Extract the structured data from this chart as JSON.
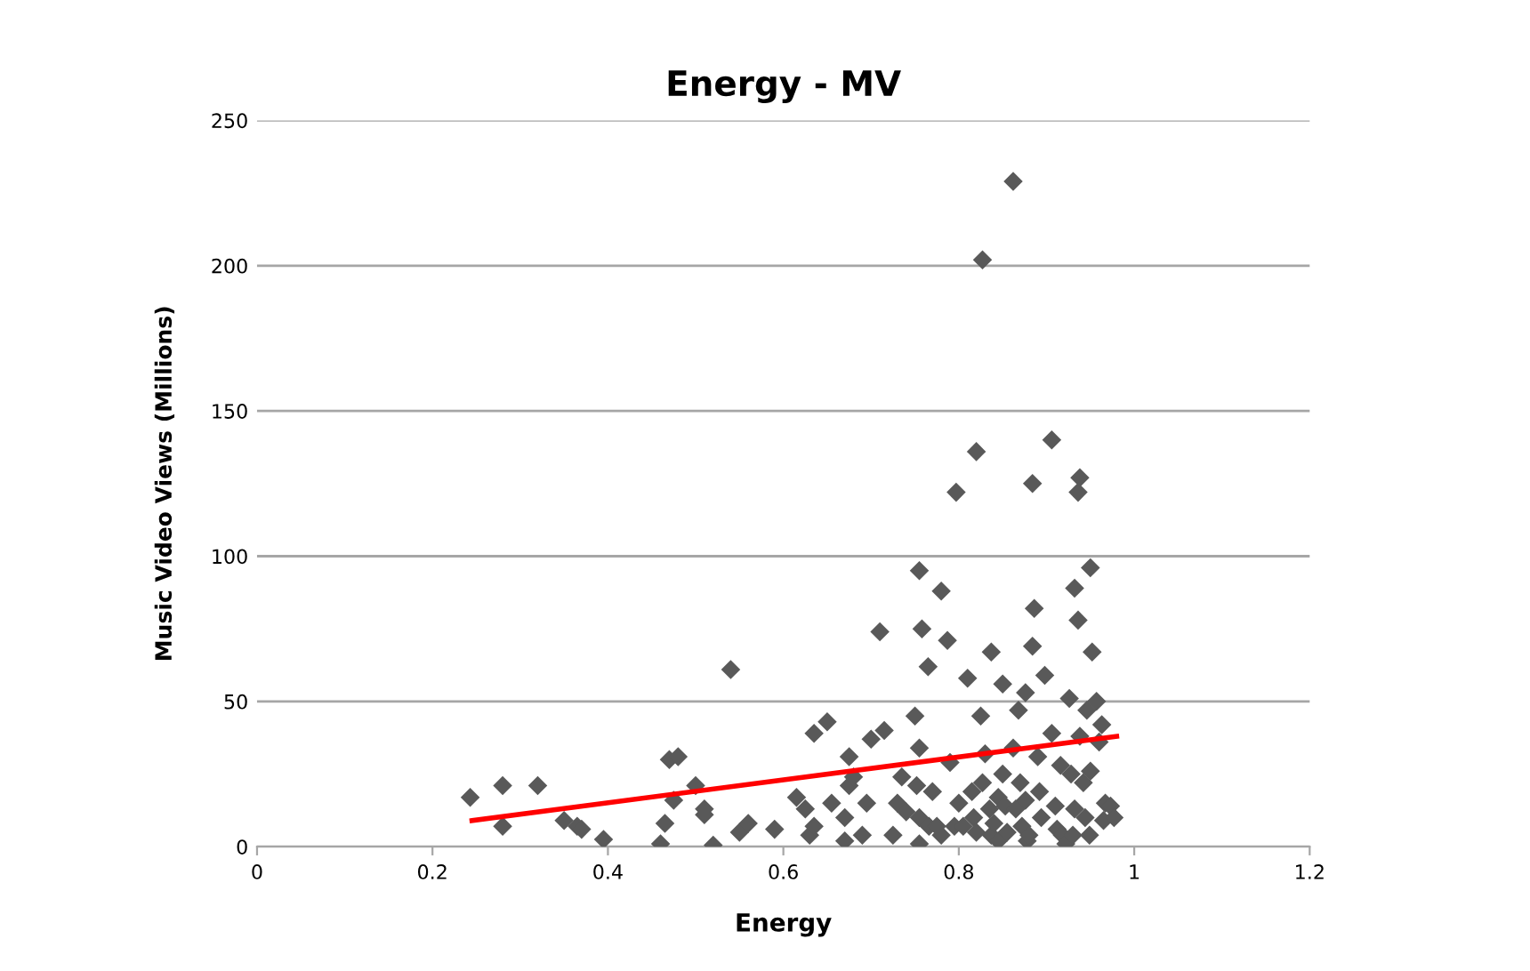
{
  "chart_data": {
    "type": "scatter",
    "title": "Energy - MV",
    "xlabel": "Energy",
    "ylabel": "Music Video Views (Millions)",
    "xlim": [
      0,
      1.2
    ],
    "xticks": [
      0,
      0.2,
      0.4,
      0.6,
      0.8,
      1,
      1.2
    ],
    "ylim": [
      0,
      250
    ],
    "yticks": [
      0,
      50,
      100,
      150,
      200,
      250
    ],
    "grid": "y",
    "legend": false,
    "series": [
      {
        "color": "#595959",
        "marker": "diamond",
        "x": [
          0.243,
          0.28,
          0.28,
          0.32,
          0.35,
          0.365,
          0.37,
          0.395,
          0.46,
          0.465,
          0.47,
          0.48,
          0.475,
          0.5,
          0.51,
          0.51,
          0.52,
          0.54,
          0.55,
          0.56,
          0.59,
          0.615,
          0.625,
          0.63,
          0.635,
          0.635,
          0.65,
          0.655,
          0.67,
          0.67,
          0.675,
          0.675,
          0.68,
          0.69,
          0.695,
          0.7,
          0.71,
          0.715,
          0.725,
          0.73,
          0.735,
          0.74,
          0.75,
          0.755,
          0.755,
          0.752,
          0.755,
          0.755,
          0.758,
          0.765,
          0.766,
          0.77,
          0.775,
          0.78,
          0.78,
          0.787,
          0.79,
          0.795,
          0.797,
          0.8,
          0.805,
          0.81,
          0.815,
          0.817,
          0.82,
          0.82,
          0.827,
          0.825,
          0.827,
          0.83,
          0.837,
          0.835,
          0.837,
          0.84,
          0.845,
          0.845,
          0.85,
          0.85,
          0.853,
          0.855,
          0.862,
          0.862,
          0.865,
          0.868,
          0.87,
          0.872,
          0.876,
          0.876,
          0.878,
          0.88,
          0.884,
          0.884,
          0.886,
          0.89,
          0.892,
          0.894,
          0.898,
          0.906,
          0.906,
          0.91,
          0.912,
          0.916,
          0.918,
          0.922,
          0.926,
          0.928,
          0.93,
          0.932,
          0.932,
          0.936,
          0.936,
          0.938,
          0.938,
          0.942,
          0.944,
          0.946,
          0.949,
          0.95,
          0.95,
          0.952,
          0.957,
          0.96,
          0.963,
          0.965,
          0.967,
          0.973,
          0.977
        ],
        "values": [
          17,
          7,
          21,
          21,
          9,
          7,
          6,
          2.5,
          1,
          8,
          30,
          31,
          16,
          21,
          13,
          11,
          0.5,
          61,
          5,
          8,
          6,
          17,
          13,
          4,
          7,
          39,
          43,
          15,
          2,
          10,
          21,
          31,
          24,
          4,
          15,
          37,
          74,
          40,
          4,
          15,
          24,
          12,
          45,
          10,
          1,
          21,
          34,
          95,
          75,
          62,
          7,
          19,
          7,
          4,
          88,
          71,
          29,
          7,
          122,
          15,
          7,
          58,
          19,
          10,
          5,
          136,
          202,
          45,
          22,
          32,
          67,
          13,
          4,
          8,
          17,
          2,
          56,
          25,
          14,
          5,
          229,
          34,
          13,
          47,
          22,
          7,
          53,
          16,
          2,
          4,
          125,
          69,
          82,
          31,
          19,
          10,
          59,
          140,
          39,
          14,
          6,
          28,
          4,
          1,
          51,
          25,
          4,
          89,
          13,
          122,
          78,
          127,
          38,
          22,
          10,
          47,
          4,
          96,
          26,
          67,
          50,
          36,
          42,
          9,
          15,
          14,
          10
        ]
      },
      {
        "type": "line",
        "color": "#ff0000",
        "marker": "none",
        "line_style": "solid",
        "x": [
          0.245,
          0.98
        ],
        "values": [
          9,
          38
        ]
      }
    ]
  }
}
